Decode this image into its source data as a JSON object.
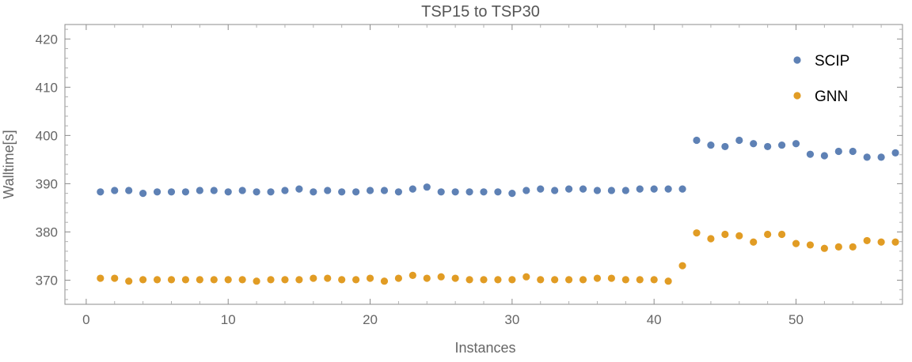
{
  "chart_data": {
    "type": "scatter",
    "title": "TSP15 to TSP30",
    "xlabel": "Instances",
    "ylabel": "Walltime[s]",
    "xlim": [
      -1.5,
      57.5
    ],
    "ylim": [
      365,
      423
    ],
    "x_ticks": [
      0,
      10,
      20,
      30,
      40,
      50
    ],
    "y_ticks": [
      370,
      380,
      390,
      400,
      410,
      420
    ],
    "grid": false,
    "legend_position": "top-right",
    "series": [
      {
        "name": "SCIP",
        "color": "#5e81b5",
        "x": [
          1,
          2,
          3,
          4,
          5,
          6,
          7,
          8,
          9,
          10,
          11,
          12,
          13,
          14,
          15,
          16,
          17,
          18,
          19,
          20,
          21,
          22,
          23,
          24,
          25,
          26,
          27,
          28,
          29,
          30,
          31,
          32,
          33,
          34,
          35,
          36,
          37,
          38,
          39,
          40,
          41,
          42,
          43,
          44,
          45,
          46,
          47,
          48,
          49,
          50,
          51,
          52,
          53,
          54,
          55,
          56,
          57
        ],
        "values": [
          388.3,
          388.6,
          388.6,
          388.0,
          388.3,
          388.3,
          388.3,
          388.6,
          388.6,
          388.3,
          388.6,
          388.3,
          388.3,
          388.6,
          388.9,
          388.3,
          388.6,
          388.3,
          388.3,
          388.6,
          388.6,
          388.3,
          388.9,
          389.3,
          388.3,
          388.3,
          388.3,
          388.3,
          388.3,
          388.0,
          388.6,
          388.9,
          388.6,
          388.9,
          388.9,
          388.6,
          388.6,
          388.6,
          388.9,
          388.9,
          388.9,
          388.9,
          399.0,
          398.0,
          397.7,
          399.0,
          398.3,
          397.7,
          398.0,
          398.3,
          396.1,
          395.8,
          396.7,
          396.7,
          395.5,
          395.5,
          396.4
        ]
      },
      {
        "name": "GNN",
        "color": "#e19c24",
        "x": [
          1,
          2,
          3,
          4,
          5,
          6,
          7,
          8,
          9,
          10,
          11,
          12,
          13,
          14,
          15,
          16,
          17,
          18,
          19,
          20,
          21,
          22,
          23,
          24,
          25,
          26,
          27,
          28,
          29,
          30,
          31,
          32,
          33,
          34,
          35,
          36,
          37,
          38,
          39,
          40,
          41,
          42,
          43,
          44,
          45,
          46,
          47,
          48,
          49,
          50,
          51,
          52,
          53,
          54,
          55,
          56,
          57
        ],
        "values": [
          370.4,
          370.4,
          369.8,
          370.1,
          370.1,
          370.1,
          370.1,
          370.1,
          370.1,
          370.1,
          370.1,
          369.8,
          370.1,
          370.1,
          370.1,
          370.4,
          370.4,
          370.1,
          370.1,
          370.4,
          369.8,
          370.4,
          371.0,
          370.4,
          370.7,
          370.4,
          370.1,
          370.1,
          370.1,
          370.1,
          370.7,
          370.1,
          370.1,
          370.1,
          370.1,
          370.4,
          370.4,
          370.1,
          370.1,
          370.1,
          369.8,
          373.0,
          379.8,
          378.6,
          379.5,
          379.2,
          377.9,
          379.5,
          379.5,
          377.6,
          377.3,
          376.6,
          376.9,
          376.9,
          378.2,
          377.9,
          377.9
        ]
      }
    ]
  }
}
